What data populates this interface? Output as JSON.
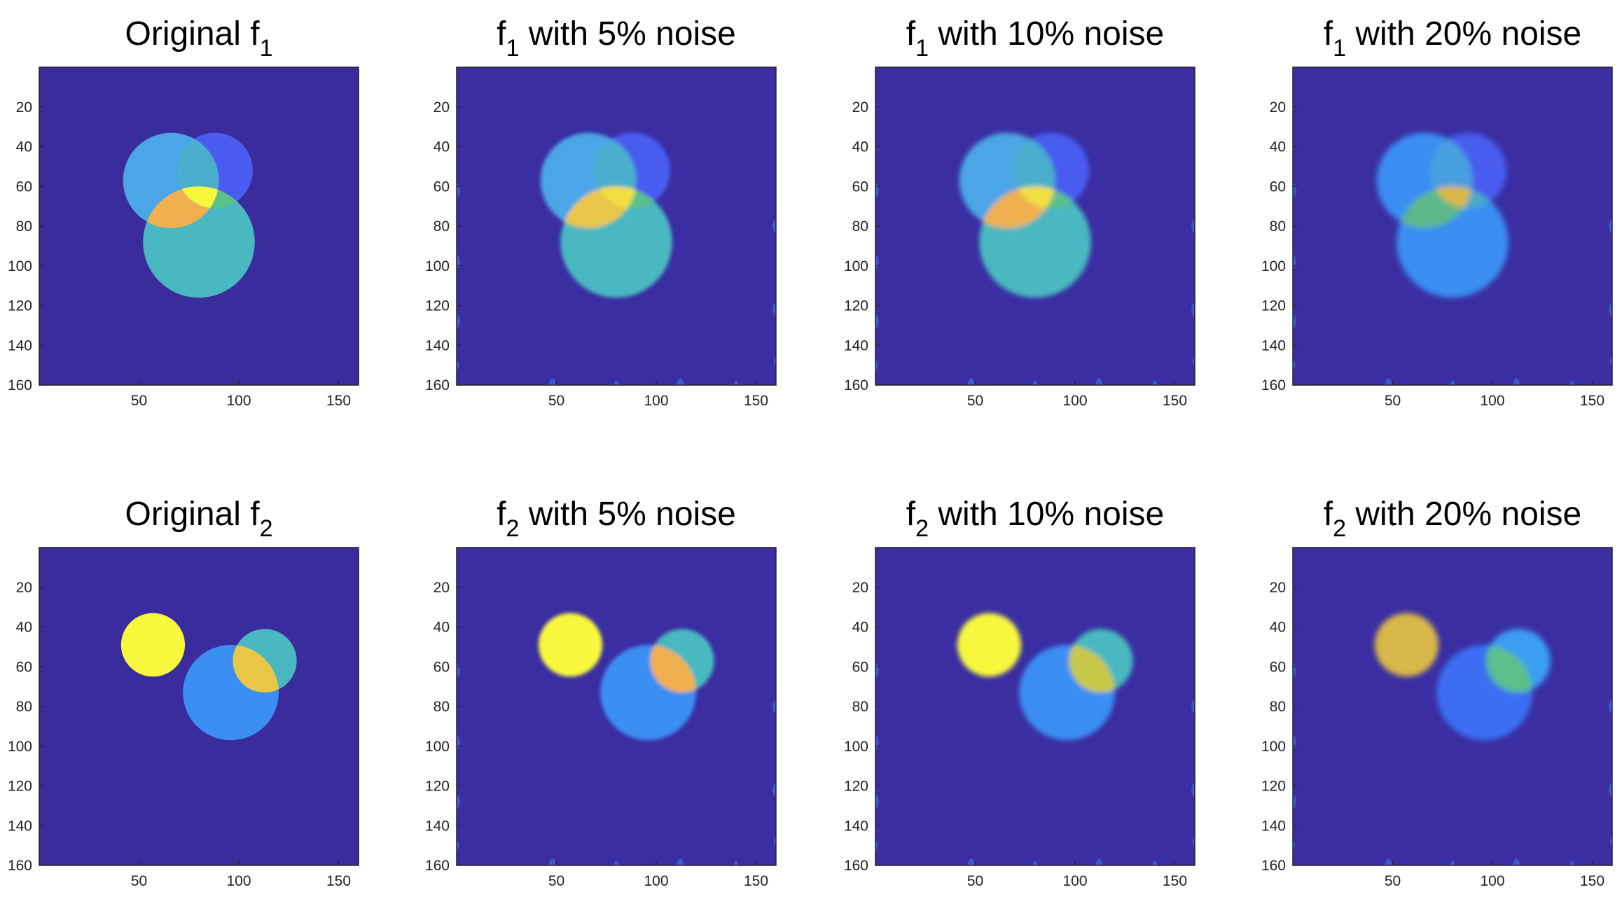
{
  "figure": {
    "colors": {
      "background": "#3a2c9c",
      "tint": "#3d35b0",
      "axis_frame": "#222222",
      "circle_levels": [
        "#4a5cf0",
        "#3b8ef2",
        "#4ba5e6",
        "#4aafcc",
        "#5bc08a",
        "#e8d04a",
        "#f0b050",
        "#f7f83c"
      ]
    },
    "axes_common": {
      "xlim": [
        0,
        160
      ],
      "ylim": [
        0,
        160
      ],
      "xticks": [
        50,
        100,
        150
      ],
      "yticks": [
        20,
        40,
        60,
        80,
        100,
        120,
        140,
        160
      ],
      "y_direction": "reversed (image coordinates)",
      "type": "heatmap"
    }
  },
  "chart_data": [
    {
      "type": "heatmap",
      "title_main": "Original f",
      "title_sub": "1",
      "row": 1,
      "col": 1,
      "blur": 0,
      "edge_artifacts": false,
      "circles": [
        {
          "cx": 66,
          "cy": 57,
          "r": 24,
          "color": "#4ba5e6"
        },
        {
          "cx": 88,
          "cy": 52,
          "r": 19,
          "color": "#4a5cf0",
          "blend": "intersect-color:#4aafcc"
        },
        {
          "cx": 80,
          "cy": 88,
          "r": 28,
          "color": "#4ab8c0"
        }
      ],
      "overlaps": [
        {
          "between": [
            0,
            2
          ],
          "color": "#f0b050"
        },
        {
          "between": [
            1,
            2
          ],
          "color": "#5bc08a"
        },
        {
          "between": [
            0,
            1,
            2
          ],
          "color": "#f7f83c"
        }
      ]
    },
    {
      "type": "heatmap",
      "title_main": "f",
      "title_sub": "1",
      "title_tail": "with 5% noise",
      "row": 1,
      "col": 2,
      "blur": 1.2,
      "edge_artifacts": true,
      "circles": [
        {
          "cx": 66,
          "cy": 57,
          "r": 24,
          "color": "#4ba5e6"
        },
        {
          "cx": 88,
          "cy": 52,
          "r": 19,
          "color": "#4a5cf0",
          "blend": "intersect-color:#4aafcc"
        },
        {
          "cx": 80,
          "cy": 88,
          "r": 28,
          "color": "#4ab8c0"
        }
      ],
      "overlaps": [
        {
          "between": [
            0,
            2
          ],
          "color": "#e8c648"
        },
        {
          "between": [
            1,
            2
          ],
          "color": "#5bc08a"
        },
        {
          "between": [
            0,
            1,
            2
          ],
          "color": "#f2e040"
        }
      ]
    },
    {
      "type": "heatmap",
      "title_main": "f",
      "title_sub": "1",
      "title_tail": "with 10% noise",
      "row": 1,
      "col": 3,
      "blur": 1.6,
      "edge_artifacts": true,
      "circles": [
        {
          "cx": 66,
          "cy": 57,
          "r": 24,
          "color": "#4ba5e6"
        },
        {
          "cx": 88,
          "cy": 52,
          "r": 19,
          "color": "#4a5cf0",
          "blend": "intersect-color:#4aafcc"
        },
        {
          "cx": 80,
          "cy": 88,
          "r": 28,
          "color": "#4ab8c0"
        }
      ],
      "overlaps": [
        {
          "between": [
            0,
            2
          ],
          "color": "#f0b050"
        },
        {
          "between": [
            1,
            2
          ],
          "color": "#5bc08a"
        },
        {
          "between": [
            0,
            1,
            2
          ],
          "color": "#f2e040"
        }
      ]
    },
    {
      "type": "heatmap",
      "title_main": "f",
      "title_sub": "1",
      "title_tail": "with 20% noise",
      "row": 1,
      "col": 4,
      "blur": 1.8,
      "edge_artifacts": true,
      "circles": [
        {
          "cx": 66,
          "cy": 57,
          "r": 24,
          "color": "#3b8ef2"
        },
        {
          "cx": 88,
          "cy": 52,
          "r": 19,
          "color": "#4a5cf0",
          "blend": "intersect-color:#4aa0e0"
        },
        {
          "cx": 80,
          "cy": 88,
          "r": 28,
          "color": "#3b8ef2"
        }
      ],
      "overlaps": [
        {
          "between": [
            0,
            2
          ],
          "color": "#5bb88a"
        },
        {
          "between": [
            1,
            2
          ],
          "color": "#4aaac8"
        },
        {
          "between": [
            0,
            1,
            2
          ],
          "color": "#d8b84a"
        }
      ]
    },
    {
      "type": "heatmap",
      "title_main": "Original f",
      "title_sub": "2",
      "row": 2,
      "col": 1,
      "blur": 0,
      "edge_artifacts": false,
      "circles": [
        {
          "cx": 57,
          "cy": 49,
          "r": 16,
          "color": "#f7f83c"
        },
        {
          "cx": 96,
          "cy": 73,
          "r": 24,
          "color": "#3b8ef2"
        },
        {
          "cx": 113,
          "cy": 57,
          "r": 16,
          "color": "#4ab8c0"
        }
      ],
      "overlaps": [
        {
          "between": [
            1,
            2
          ],
          "color": "#e8c648"
        }
      ]
    },
    {
      "type": "heatmap",
      "title_main": "f",
      "title_sub": "2",
      "title_tail": "with 5% noise",
      "row": 2,
      "col": 2,
      "blur": 1.2,
      "edge_artifacts": true,
      "circles": [
        {
          "cx": 57,
          "cy": 49,
          "r": 16,
          "color": "#f7f83c"
        },
        {
          "cx": 96,
          "cy": 73,
          "r": 24,
          "color": "#3b8ef2"
        },
        {
          "cx": 113,
          "cy": 57,
          "r": 16,
          "color": "#4ab8c0"
        }
      ],
      "overlaps": [
        {
          "between": [
            1,
            2
          ],
          "color": "#f0b050"
        }
      ]
    },
    {
      "type": "heatmap",
      "title_main": "f",
      "title_sub": "2",
      "title_tail": "with 10% noise",
      "row": 2,
      "col": 3,
      "blur": 1.6,
      "edge_artifacts": true,
      "circles": [
        {
          "cx": 57,
          "cy": 49,
          "r": 16,
          "color": "#f7f83c"
        },
        {
          "cx": 96,
          "cy": 73,
          "r": 24,
          "color": "#3b8ef2"
        },
        {
          "cx": 113,
          "cy": 57,
          "r": 16,
          "color": "#4ab8c0"
        }
      ],
      "overlaps": [
        {
          "between": [
            1,
            2
          ],
          "color": "#c8c84a"
        }
      ]
    },
    {
      "type": "heatmap",
      "title_main": "f",
      "title_sub": "2",
      "title_tail": "with 20% noise",
      "row": 2,
      "col": 4,
      "blur": 1.8,
      "edge_artifacts": true,
      "circles": [
        {
          "cx": 57,
          "cy": 49,
          "r": 16,
          "color": "#d8b84a"
        },
        {
          "cx": 96,
          "cy": 73,
          "r": 24,
          "color": "#3b6ef2"
        },
        {
          "cx": 113,
          "cy": 57,
          "r": 16,
          "color": "#3b9ef2"
        }
      ],
      "overlaps": [
        {
          "between": [
            1,
            2
          ],
          "color": "#5bc08a"
        }
      ]
    }
  ]
}
